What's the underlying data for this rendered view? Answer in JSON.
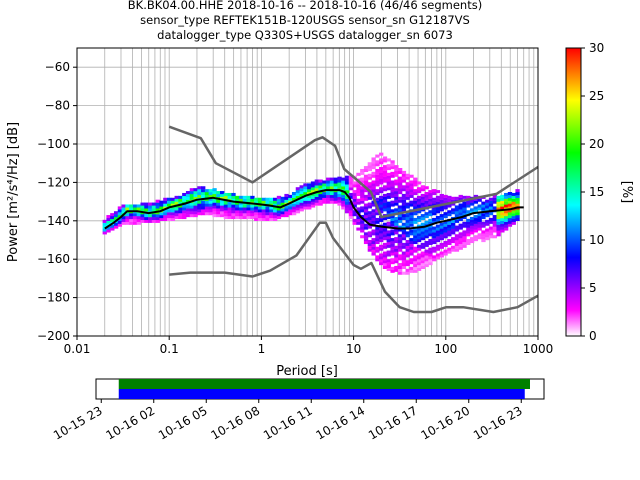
{
  "chart_data": [
    {
      "type": "heatmap",
      "title_lines": [
        "BK.BK04.00.HHE   2018-10-16 -- 2018-10-16  (46/46 segments)",
        "sensor_type REFTEK151B-120USGS sensor_sn G12187VS",
        "datalogger_type Q330S+USGS datalogger_sn 6073"
      ],
      "xlabel": "Period [s]",
      "ylabel": "Power [m²/s⁴/Hz] [dB]",
      "xscale": "log",
      "xlim": [
        0.01,
        1000
      ],
      "ylim": [
        -200,
        -50
      ],
      "x_ticks": [
        {
          "v": 0.01,
          "label": "0.01"
        },
        {
          "v": 0.1,
          "label": "0.1"
        },
        {
          "v": 1,
          "label": "1"
        },
        {
          "v": 10,
          "label": "10"
        },
        {
          "v": 100,
          "label": "100"
        },
        {
          "v": 1000,
          "label": "1000"
        }
      ],
      "y_ticks": [
        -60,
        -80,
        -100,
        -120,
        -140,
        -160,
        -180,
        -200
      ],
      "grid": true,
      "colorbar": {
        "label": "[%]",
        "range": [
          0,
          30
        ],
        "ticks": [
          0,
          5,
          10,
          15,
          20,
          25,
          30
        ],
        "colormap": [
          "#ffffff",
          "#ff00ff",
          "#8000ff",
          "#0000ff",
          "#0080ff",
          "#00ffff",
          "#00ff80",
          "#00ff00",
          "#80ff00",
          "#ffff00",
          "#ff8000",
          "#ff0000"
        ]
      },
      "series": [
        {
          "role": "median_psd",
          "color": "#000000",
          "points": [
            [
              0.02,
              -144
            ],
            [
              0.025,
              -141
            ],
            [
              0.03,
              -138
            ],
            [
              0.035,
              -135
            ],
            [
              0.045,
              -135
            ],
            [
              0.06,
              -136
            ],
            [
              0.08,
              -135
            ],
            [
              0.1,
              -133
            ],
            [
              0.15,
              -131
            ],
            [
              0.2,
              -129
            ],
            [
              0.3,
              -128
            ],
            [
              0.5,
              -130
            ],
            [
              0.8,
              -131
            ],
            [
              1.2,
              -132
            ],
            [
              1.6,
              -133
            ],
            [
              2,
              -131
            ],
            [
              3,
              -127
            ],
            [
              4,
              -125
            ],
            [
              5,
              -124
            ],
            [
              6,
              -124
            ],
            [
              7,
              -124
            ],
            [
              8,
              -125
            ],
            [
              9,
              -128
            ],
            [
              10,
              -133
            ],
            [
              12,
              -138
            ],
            [
              15,
              -142
            ],
            [
              20,
              -143
            ],
            [
              30,
              -144
            ],
            [
              40,
              -144
            ],
            [
              60,
              -143
            ],
            [
              80,
              -141
            ],
            [
              100,
              -140
            ],
            [
              150,
              -138
            ],
            [
              200,
              -136
            ],
            [
              300,
              -135
            ],
            [
              500,
              -134
            ],
            [
              600,
              -133
            ],
            [
              700,
              -133
            ]
          ]
        },
        {
          "role": "high_noise_model",
          "color": "#666666",
          "points": [
            [
              0.1,
              -91
            ],
            [
              0.22,
              -97
            ],
            [
              0.32,
              -110
            ],
            [
              0.8,
              -120
            ],
            [
              3.8,
              -98
            ],
            [
              4.6,
              -96.5
            ],
            [
              6.3,
              -101
            ],
            [
              7.9,
              -113
            ],
            [
              15.4,
              -125
            ],
            [
              20,
              -138
            ],
            [
              354.8,
              -126
            ],
            [
              1000,
              -112
            ]
          ]
        },
        {
          "role": "low_noise_model",
          "color": "#666666",
          "points": [
            [
              0.1,
              -168
            ],
            [
              0.17,
              -167
            ],
            [
              0.4,
              -167
            ],
            [
              0.8,
              -169
            ],
            [
              1.24,
              -166
            ],
            [
              2.4,
              -158
            ],
            [
              4.3,
              -141
            ],
            [
              5,
              -141
            ],
            [
              6,
              -149
            ],
            [
              10,
              -163
            ],
            [
              12,
              -165
            ],
            [
              15.6,
              -162
            ],
            [
              21.9,
              -177
            ],
            [
              31.6,
              -185
            ],
            [
              45,
              -187.5
            ],
            [
              70,
              -187.5
            ],
            [
              101,
              -185
            ],
            [
              154,
              -185
            ],
            [
              328,
              -187.5
            ],
            [
              600,
              -185
            ],
            [
              1000,
              -179
            ]
          ]
        },
        {
          "role": "psd_histogram_heatmap",
          "color": "colormap",
          "columns": [
            {
              "x": 0.02,
              "y_min": -147,
              "y_max": -140
            },
            {
              "x": 0.03,
              "y_min": -142,
              "y_max": -133
            },
            {
              "x": 0.05,
              "y_min": -141,
              "y_max": -132
            },
            {
              "x": 0.08,
              "y_min": -140,
              "y_max": -130
            },
            {
              "x": 0.12,
              "y_min": -139,
              "y_max": -128
            },
            {
              "x": 0.2,
              "y_min": -137,
              "y_max": -123
            },
            {
              "x": 0.3,
              "y_min": -137,
              "y_max": -124
            },
            {
              "x": 0.5,
              "y_min": -139,
              "y_max": -127
            },
            {
              "x": 0.8,
              "y_min": -139,
              "y_max": -128
            },
            {
              "x": 1.2,
              "y_min": -140,
              "y_max": -129
            },
            {
              "x": 2,
              "y_min": -137,
              "y_max": -127
            },
            {
              "x": 3,
              "y_min": -134,
              "y_max": -121
            },
            {
              "x": 5,
              "y_min": -130,
              "y_max": -119
            },
            {
              "x": 7,
              "y_min": -131,
              "y_max": -118
            },
            {
              "x": 10,
              "y_min": -140,
              "y_max": -118
            },
            {
              "x": 15,
              "y_min": -155,
              "y_max": -110
            },
            {
              "x": 20,
              "y_min": -163,
              "y_max": -105
            },
            {
              "x": 30,
              "y_min": -168,
              "y_max": -112
            },
            {
              "x": 50,
              "y_min": -166,
              "y_max": -120
            },
            {
              "x": 80,
              "y_min": -160,
              "y_max": -125
            },
            {
              "x": 120,
              "y_min": -156,
              "y_max": -128
            },
            {
              "x": 200,
              "y_min": -152,
              "y_max": -128
            },
            {
              "x": 350,
              "y_min": -148,
              "y_max": -128
            },
            {
              "x": 600,
              "y_min": -140,
              "y_max": -125
            }
          ]
        }
      ]
    },
    {
      "type": "bar",
      "role": "data_coverage_timeline",
      "x_tick_labels": [
        "10-15 23",
        "10-16 02",
        "10-16 05",
        "10-16 08",
        "10-16 11",
        "10-16 14",
        "10-16 17",
        "10-16 20",
        "10-16 23"
      ],
      "x_tick_hours": [
        -1,
        2,
        5,
        8,
        11,
        14,
        17,
        20,
        23
      ],
      "xlim_hours": [
        -1.3,
        24.3
      ],
      "series": [
        {
          "role": "coverage_green",
          "color": "#008000",
          "start_hour": 0,
          "end_hour": 23.5
        },
        {
          "role": "coverage_blue",
          "color": "#0000ff",
          "start_hour": 0,
          "end_hour": 23.2
        }
      ]
    }
  ]
}
